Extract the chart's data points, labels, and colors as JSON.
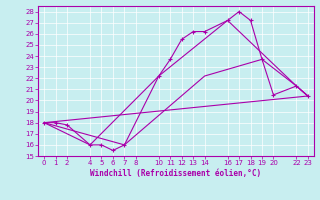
{
  "xlabel": "Windchill (Refroidissement éolien,°C)",
  "xlim": [
    -0.5,
    23.5
  ],
  "ylim": [
    15,
    28.5
  ],
  "yticks": [
    15,
    16,
    17,
    18,
    19,
    20,
    21,
    22,
    23,
    24,
    25,
    26,
    27,
    28
  ],
  "xticks": [
    0,
    1,
    2,
    4,
    5,
    6,
    7,
    8,
    10,
    11,
    12,
    13,
    14,
    16,
    17,
    18,
    19,
    20,
    22,
    23
  ],
  "xtick_labels": [
    "0",
    "1",
    "2",
    "4",
    "5",
    "6",
    "7",
    "8",
    "10",
    "11",
    "12",
    "13",
    "14",
    "16",
    "17",
    "18",
    "19",
    "20",
    "22",
    "23"
  ],
  "bg_color": "#c8eef0",
  "line_color": "#aa00aa",
  "grid_color": "#b0dde0",
  "line1_x": [
    0,
    1,
    2,
    4,
    5,
    6,
    7,
    10,
    11,
    12,
    13,
    14,
    16,
    17,
    18,
    19,
    20,
    22,
    23
  ],
  "line1_y": [
    18.0,
    18.0,
    17.8,
    16.0,
    16.0,
    15.5,
    16.0,
    22.2,
    23.7,
    25.5,
    26.2,
    26.2,
    27.2,
    28.0,
    27.2,
    23.7,
    20.5,
    21.3,
    20.4
  ],
  "line2_x": [
    0,
    4,
    10,
    16,
    22,
    23
  ],
  "line2_y": [
    18.0,
    16.0,
    22.2,
    27.2,
    21.3,
    20.4
  ],
  "line3_x": [
    0,
    7,
    14,
    19,
    22,
    23
  ],
  "line3_y": [
    18.0,
    16.0,
    22.2,
    23.7,
    21.3,
    20.4
  ],
  "line4_x": [
    0,
    23
  ],
  "line4_y": [
    18.0,
    20.4
  ]
}
